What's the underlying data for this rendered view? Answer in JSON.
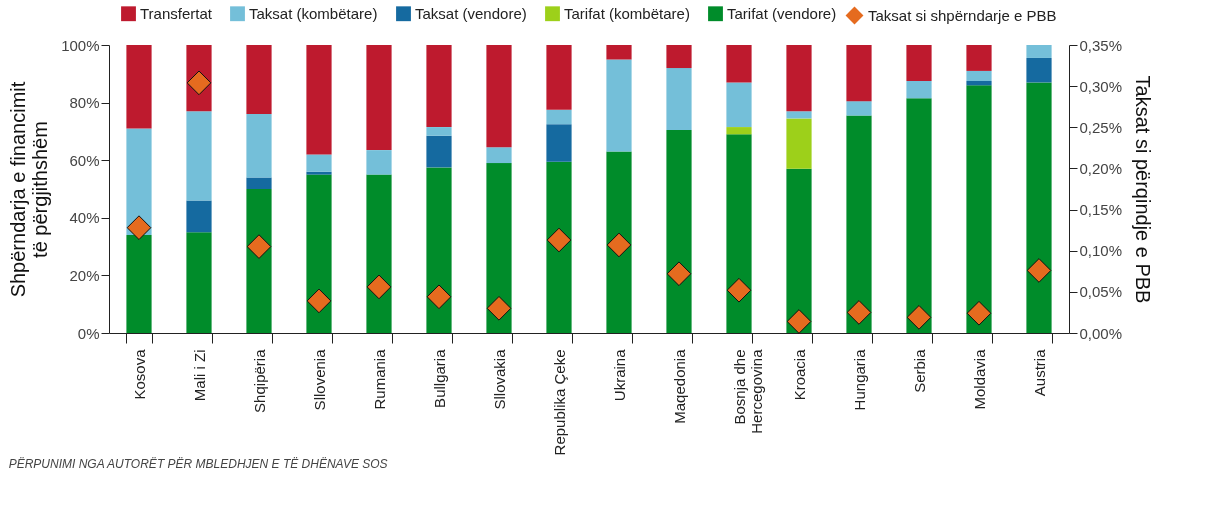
{
  "chart_data": {
    "type": "bar",
    "stacked": true,
    "legend": "top",
    "ylabel": "Shpërndarja e financimit të përgjithshëm",
    "y2label": "Taksat si përqindje e PBB",
    "categories": [
      "Kosova",
      "Mali i Zi",
      "Shqipëria",
      "Sllovenia",
      "Rumania",
      "Bullgaria",
      "Sllovakia",
      "Republika Çeke",
      "Ukraina",
      "Maqedonia",
      "Bosnja dhe Hercegovina",
      "Kroacia",
      "Hungaria",
      "Serbia",
      "Moldavia",
      "Austria"
    ],
    "ylim": [
      0,
      100
    ],
    "yticks": [
      {
        "value": 0,
        "label": "0%"
      },
      {
        "value": 20,
        "label": "20%"
      },
      {
        "value": 40,
        "label": "40%"
      },
      {
        "value": 60,
        "label": "60%"
      },
      {
        "value": 80,
        "label": "80%"
      },
      {
        "value": 100,
        "label": "100%"
      }
    ],
    "y2lim": [
      0,
      0.35
    ],
    "y2ticks": [
      {
        "value": 0,
        "label": "0,00%"
      },
      {
        "value": 0.05,
        "label": "0,05%"
      },
      {
        "value": 0.1,
        "label": "0,10%"
      },
      {
        "value": 0.15,
        "label": "0,15%"
      },
      {
        "value": 0.2,
        "label": "0,20%"
      },
      {
        "value": 0.25,
        "label": "0,25%"
      },
      {
        "value": 0.3,
        "label": "0,30%"
      },
      {
        "value": 0.35,
        "label": "0,35%"
      }
    ],
    "series": [
      {
        "name": "Tarifat (vendore)",
        "color": "#008c2a",
        "values": [
          34,
          35,
          50,
          55,
          55,
          57.5,
          59,
          59.5,
          63,
          70.5,
          69,
          57,
          75.5,
          81.5,
          86,
          87
        ]
      },
      {
        "name": "Tarifat (kombëtare)",
        "color": "#9dd01a",
        "values": [
          0,
          0,
          0,
          0,
          0,
          0,
          0,
          0,
          0,
          0,
          2.5,
          17.5,
          0,
          0,
          0,
          0
        ]
      },
      {
        "name": "Taksat (vendore)",
        "color": "#156aa0",
        "values": [
          0,
          11,
          4,
          1,
          0,
          11,
          0,
          13,
          0,
          0,
          0,
          0,
          0,
          0,
          1.5,
          8.5
        ]
      },
      {
        "name": "Taksat (kombëtare)",
        "color": "#74bfd9",
        "values": [
          37,
          31,
          22,
          6,
          8.5,
          3,
          5.5,
          5,
          32,
          21.5,
          15.5,
          2.5,
          5,
          6,
          3.5,
          4.5
        ]
      },
      {
        "name": "Transfertat",
        "color": "#be1a2e",
        "values": [
          29,
          23,
          24,
          38,
          36.5,
          28.5,
          35.5,
          22.5,
          5,
          8,
          13,
          23,
          19.5,
          12.5,
          9,
          0
        ]
      },
      {
        "name": "Taksat si shpërndarje e PBB",
        "type": "scatter",
        "axis": "y2",
        "marker": "diamond",
        "color": "#e56b1f",
        "values": [
          0.128,
          0.304,
          0.105,
          0.039,
          0.056,
          0.044,
          0.03,
          0.113,
          0.107,
          0.072,
          0.052,
          0.014,
          0.025,
          0.019,
          0.024,
          0.076
        ]
      }
    ],
    "annotations": [
      "PËRPUNIMI NGA AUTORËT PËR MBLEDHJEN E TË DHËNAVE SOS"
    ]
  }
}
